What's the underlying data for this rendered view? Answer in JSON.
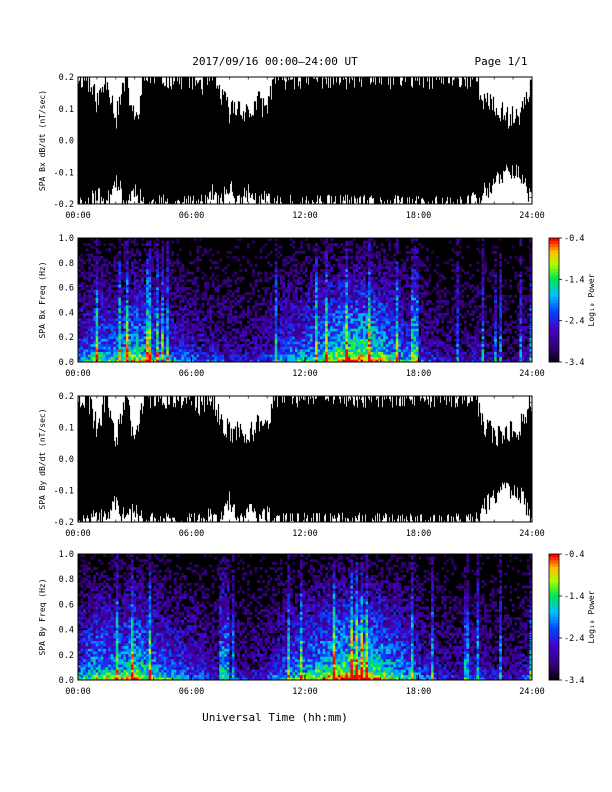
{
  "header": {
    "title": "2017/09/16  00:00–24:00 UT",
    "page": "Page 1/1"
  },
  "xlabel": "Universal Time (hh:mm)",
  "x_ticks": [
    "00:00",
    "06:00",
    "12:00",
    "18:00",
    "24:00"
  ],
  "colors": {
    "trace": "#000000",
    "background": "#ffffff",
    "spectrogram_background": "#000000"
  },
  "chart_data": [
    {
      "type": "area",
      "ylabel": "SPA Bx dB/dt (nT/sec)",
      "xlim": [
        0,
        24
      ],
      "ylim": [
        -0.2,
        0.2
      ],
      "y_ticks": [
        "0.2",
        "0.1",
        "0.0",
        "-0.1",
        "-0.2"
      ],
      "envelope": {
        "x": [
          0,
          0.4,
          1.0,
          1.5,
          2.0,
          2.5,
          3.0,
          3.5,
          4.0,
          4.5,
          5.0,
          5.5,
          6.0,
          6.5,
          7.0,
          7.5,
          8.0,
          8.5,
          9.0,
          9.5,
          10.0,
          10.3,
          10.5,
          10.9,
          11.5,
          12.0,
          13.0,
          14.0,
          15.0,
          16.0,
          17.0,
          18.0,
          18.5,
          19.0,
          19.5,
          20.0,
          20.5,
          21.0,
          21.5,
          22.0,
          22.5,
          23.0,
          23.5,
          24.0
        ],
        "upper": [
          0.2,
          0.2,
          0.12,
          0.2,
          0.07,
          0.2,
          0.05,
          0.2,
          0.2,
          0.2,
          0.2,
          0.2,
          0.2,
          0.18,
          0.2,
          0.15,
          0.09,
          0.11,
          0.08,
          0.12,
          0.1,
          0.2,
          0.2,
          0.2,
          0.2,
          0.2,
          0.2,
          0.2,
          0.2,
          0.2,
          0.2,
          0.2,
          0.2,
          0.2,
          0.2,
          0.2,
          0.2,
          0.2,
          0.12,
          0.1,
          0.08,
          0.07,
          0.1,
          0.2
        ],
        "lower": [
          -0.2,
          -0.2,
          -0.17,
          -0.2,
          -0.12,
          -0.2,
          -0.15,
          -0.2,
          -0.2,
          -0.2,
          -0.2,
          -0.2,
          -0.2,
          -0.2,
          -0.16,
          -0.2,
          -0.14,
          -0.2,
          -0.16,
          -0.2,
          -0.18,
          -0.2,
          -0.2,
          -0.2,
          -0.2,
          -0.2,
          -0.2,
          -0.2,
          -0.2,
          -0.2,
          -0.2,
          -0.2,
          -0.2,
          -0.2,
          -0.2,
          -0.2,
          -0.2,
          -0.18,
          -0.16,
          -0.14,
          -0.1,
          -0.09,
          -0.12,
          -0.2
        ]
      }
    },
    {
      "type": "heatmap",
      "ylabel": "SPA Bx Freq (Hz)",
      "xlim": [
        0,
        24
      ],
      "ylim": [
        0,
        1.0
      ],
      "y_ticks": [
        "1.0",
        "0.8",
        "0.6",
        "0.4",
        "0.2",
        "0.0"
      ],
      "colorbar": {
        "label": "Log₁₀ Power",
        "range": [
          -3.4,
          -0.4
        ],
        "ticks": [
          "-0.4",
          "-1.4",
          "-2.4",
          "-3.4"
        ]
      },
      "activity": {
        "x": [
          0,
          1,
          2,
          3,
          4,
          5,
          6,
          7,
          8,
          9,
          10,
          11,
          12,
          13,
          14,
          15,
          16,
          17,
          18,
          19,
          20,
          21,
          22,
          23,
          24
        ],
        "level": [
          0.45,
          0.6,
          0.55,
          0.7,
          0.6,
          0.45,
          0.4,
          0.35,
          0.3,
          0.3,
          0.35,
          0.5,
          0.55,
          0.65,
          0.75,
          0.8,
          0.7,
          0.55,
          0.4,
          0.3,
          0.25,
          0.3,
          0.25,
          0.2,
          0.35
        ]
      }
    },
    {
      "type": "area",
      "ylabel": "SPA By dB/dt (nT/sec)",
      "xlim": [
        0,
        24
      ],
      "ylim": [
        -0.2,
        0.2
      ],
      "y_ticks": [
        "0.2",
        "0.1",
        "0.0",
        "-0.1",
        "-0.2"
      ],
      "envelope": {
        "x": [
          0,
          0.4,
          1.0,
          1.5,
          2.0,
          2.5,
          3.0,
          3.5,
          4.0,
          4.5,
          5.0,
          5.5,
          6.0,
          6.5,
          7.0,
          7.5,
          8.0,
          8.5,
          9.0,
          9.5,
          10.0,
          10.3,
          10.5,
          10.9,
          11.5,
          12.0,
          13.0,
          14.0,
          15.0,
          16.0,
          17.0,
          18.0,
          18.5,
          19.0,
          19.5,
          20.0,
          20.5,
          21.0,
          21.5,
          22.0,
          22.5,
          23.0,
          23.5,
          24.0
        ],
        "upper": [
          0.2,
          0.2,
          0.1,
          0.2,
          0.06,
          0.2,
          0.05,
          0.2,
          0.2,
          0.2,
          0.2,
          0.2,
          0.2,
          0.16,
          0.2,
          0.13,
          0.08,
          0.1,
          0.08,
          0.11,
          0.09,
          0.2,
          0.2,
          0.2,
          0.2,
          0.2,
          0.2,
          0.2,
          0.2,
          0.2,
          0.2,
          0.2,
          0.2,
          0.2,
          0.2,
          0.2,
          0.2,
          0.2,
          0.1,
          0.08,
          0.07,
          0.09,
          0.11,
          0.2
        ],
        "lower": [
          -0.2,
          -0.2,
          -0.18,
          -0.2,
          -0.13,
          -0.2,
          -0.16,
          -0.2,
          -0.2,
          -0.2,
          -0.2,
          -0.2,
          -0.2,
          -0.2,
          -0.17,
          -0.2,
          -0.13,
          -0.2,
          -0.15,
          -0.2,
          -0.17,
          -0.2,
          -0.2,
          -0.2,
          -0.2,
          -0.2,
          -0.2,
          -0.2,
          -0.2,
          -0.2,
          -0.2,
          -0.2,
          -0.2,
          -0.2,
          -0.2,
          -0.2,
          -0.2,
          -0.19,
          -0.15,
          -0.12,
          -0.09,
          -0.1,
          -0.12,
          -0.2
        ]
      }
    },
    {
      "type": "heatmap",
      "ylabel": "SPA By Freq (Hz)",
      "xlim": [
        0,
        24
      ],
      "ylim": [
        0,
        1.0
      ],
      "y_ticks": [
        "1.0",
        "0.8",
        "0.6",
        "0.4",
        "0.2",
        "0.0"
      ],
      "colorbar": {
        "label": "Log₁₀ Power",
        "range": [
          -3.4,
          -0.4
        ],
        "ticks": [
          "-0.4",
          "-1.4",
          "-2.4",
          "-3.4"
        ]
      },
      "activity": {
        "x": [
          0,
          1,
          2,
          3,
          4,
          5,
          6,
          7,
          8,
          9,
          10,
          11,
          12,
          13,
          14,
          15,
          16,
          17,
          18,
          19,
          20,
          21,
          22,
          23,
          24
        ],
        "level": [
          0.5,
          0.65,
          0.6,
          0.75,
          0.6,
          0.5,
          0.45,
          0.35,
          0.3,
          0.3,
          0.35,
          0.5,
          0.6,
          0.7,
          0.8,
          0.8,
          0.7,
          0.6,
          0.45,
          0.35,
          0.3,
          0.35,
          0.3,
          0.25,
          0.4
        ]
      }
    }
  ]
}
